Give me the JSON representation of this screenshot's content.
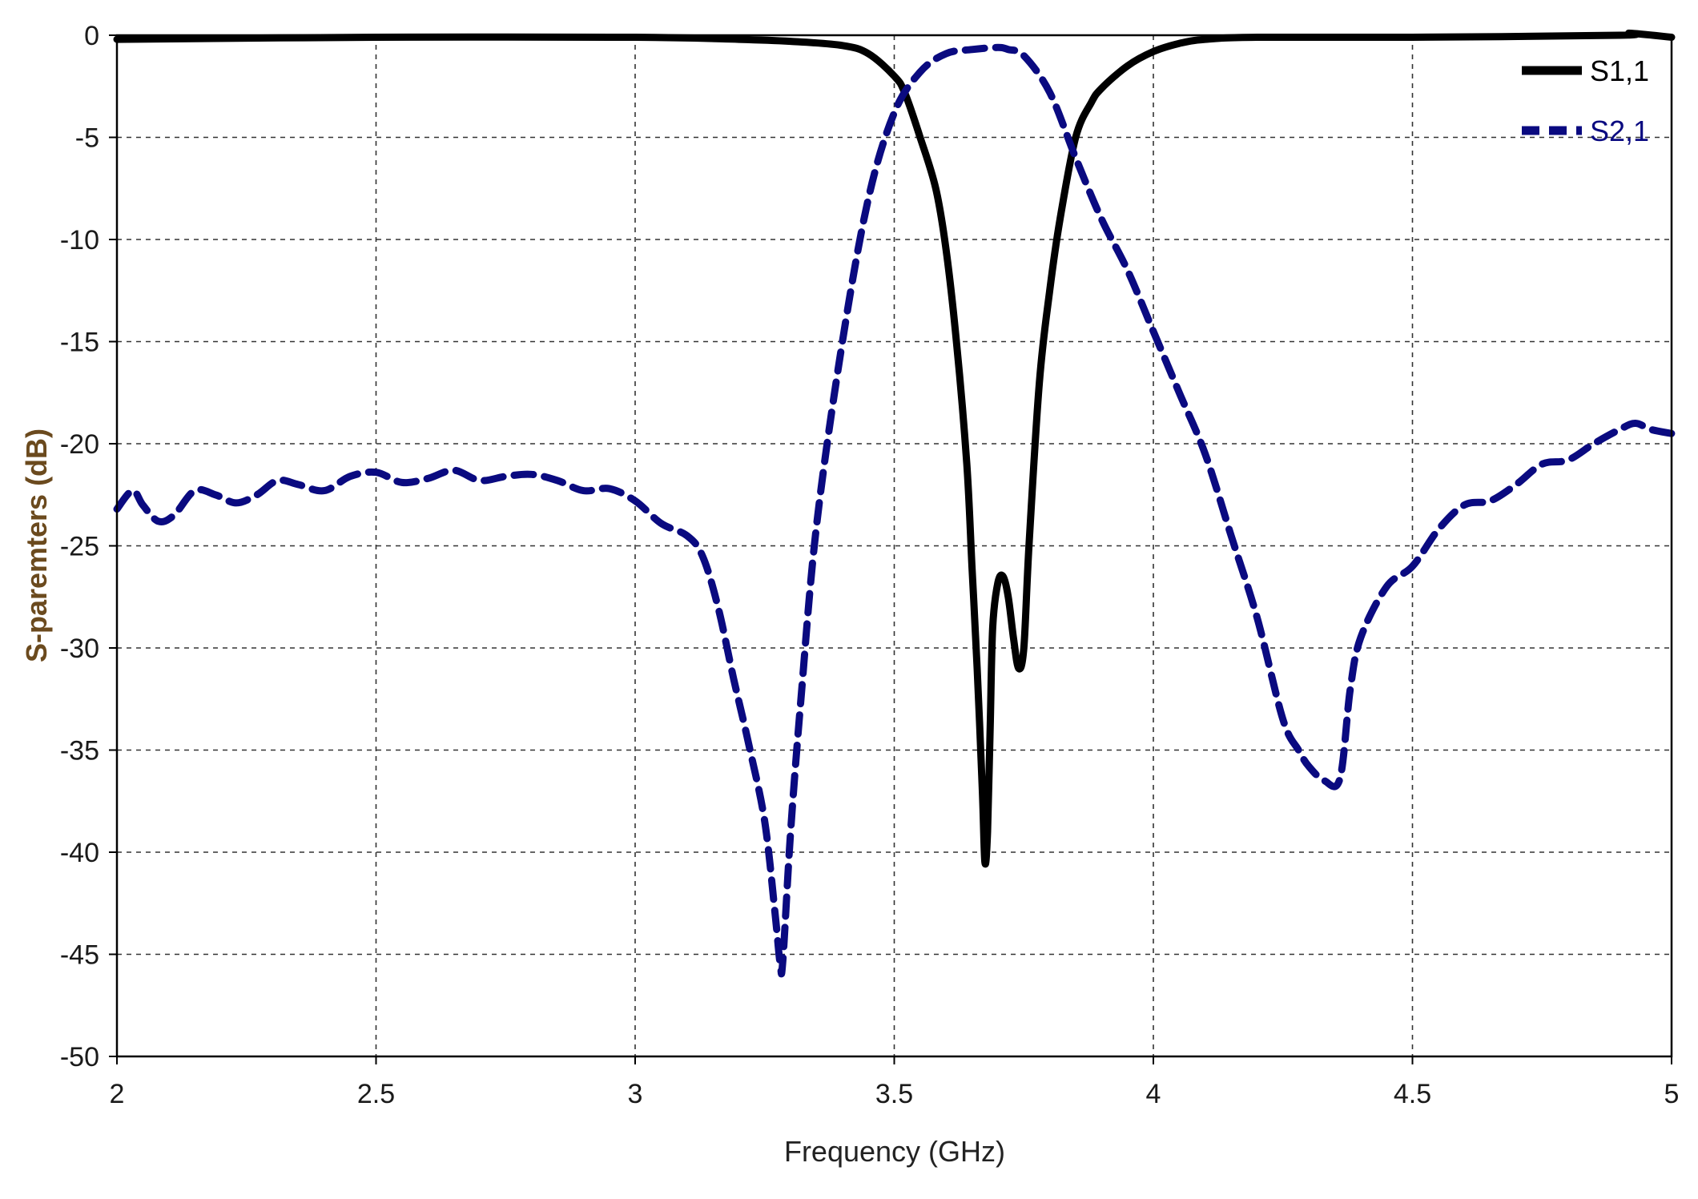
{
  "chart_data": {
    "type": "line",
    "title": "",
    "xlabel": "Frequency (GHz)",
    "ylabel": "S-paremters (dB)",
    "xlim": [
      2,
      5
    ],
    "ylim": [
      -50,
      0
    ],
    "x_ticks": [
      2,
      2.5,
      3,
      3.5,
      4,
      4.5,
      5
    ],
    "x_tick_labels": [
      "2",
      "2.5",
      "3",
      "3.5",
      "4",
      "4.5",
      "5"
    ],
    "y_ticks": [
      0,
      -5,
      -10,
      -15,
      -20,
      -25,
      -30,
      -35,
      -40,
      -45,
      -50
    ],
    "y_tick_labels": [
      "0",
      "-5",
      "-10",
      "-15",
      "-20",
      "-25",
      "-30",
      "-35",
      "-40",
      "-45",
      "-50"
    ],
    "grid": true,
    "legend_position": "top-right",
    "colors": {
      "s11": "#000000",
      "s21": "#0a0a80",
      "ylabel": "#6b4a1e",
      "xlabel": "#222222",
      "legend_s11": "#000000",
      "legend_s21": "#0a0a80"
    },
    "series": [
      {
        "name": "S1,1",
        "style": "solid",
        "x": [
          2.0,
          2.5,
          3.0,
          3.2,
          3.3,
          3.4,
          3.45,
          3.5,
          3.52,
          3.55,
          3.58,
          3.6,
          3.62,
          3.64,
          3.65,
          3.66,
          3.67,
          3.675,
          3.68,
          3.685,
          3.69,
          3.7,
          3.71,
          3.72,
          3.73,
          3.74,
          3.75,
          3.76,
          3.78,
          3.8,
          3.82,
          3.85,
          3.88,
          3.9,
          3.95,
          4.0,
          4.05,
          4.1,
          4.2,
          4.5,
          4.9,
          4.92,
          5.0
        ],
        "y": [
          -0.2,
          -0.1,
          -0.1,
          -0.2,
          -0.3,
          -0.5,
          -0.9,
          -2.0,
          -2.8,
          -5.0,
          -7.5,
          -10.5,
          -15.0,
          -21.0,
          -26.0,
          -31.0,
          -37.0,
          -40.5,
          -39.0,
          -34.0,
          -29.0,
          -26.8,
          -26.5,
          -27.5,
          -29.5,
          -31.0,
          -30.0,
          -25.0,
          -17.0,
          -12.5,
          -9.0,
          -5.0,
          -3.3,
          -2.6,
          -1.5,
          -0.8,
          -0.4,
          -0.2,
          -0.1,
          -0.1,
          0.0,
          0.1,
          -0.1
        ]
      },
      {
        "name": "S2,1",
        "style": "dashed",
        "x": [
          2.0,
          2.03,
          2.05,
          2.08,
          2.11,
          2.15,
          2.19,
          2.23,
          2.27,
          2.31,
          2.35,
          2.4,
          2.45,
          2.5,
          2.55,
          2.6,
          2.65,
          2.7,
          2.75,
          2.8,
          2.85,
          2.9,
          2.95,
          3.0,
          3.05,
          3.1,
          3.13,
          3.16,
          3.19,
          3.22,
          3.25,
          3.27,
          3.28,
          3.285,
          3.3,
          3.32,
          3.35,
          3.4,
          3.45,
          3.5,
          3.55,
          3.6,
          3.65,
          3.7,
          3.72,
          3.75,
          3.8,
          3.85,
          3.9,
          3.95,
          4.0,
          4.05,
          4.1,
          4.15,
          4.2,
          4.25,
          4.28,
          4.3,
          4.33,
          4.36,
          4.38,
          4.4,
          4.45,
          4.5,
          4.55,
          4.6,
          4.65,
          4.7,
          4.75,
          4.8,
          4.85,
          4.9,
          4.93,
          4.96,
          5.0
        ],
        "y": [
          -23.2,
          -22.3,
          -23.0,
          -23.8,
          -23.5,
          -22.3,
          -22.5,
          -22.9,
          -22.5,
          -21.8,
          -22.0,
          -22.3,
          -21.6,
          -21.4,
          -21.9,
          -21.7,
          -21.3,
          -21.8,
          -21.6,
          -21.5,
          -21.8,
          -22.3,
          -22.2,
          -22.8,
          -23.9,
          -24.5,
          -25.5,
          -28.0,
          -31.5,
          -34.8,
          -38.5,
          -43.0,
          -45.5,
          -45.3,
          -39.0,
          -32.5,
          -24.0,
          -15.0,
          -8.0,
          -3.8,
          -1.8,
          -0.9,
          -0.7,
          -0.6,
          -0.7,
          -1.0,
          -2.8,
          -6.0,
          -9.0,
          -11.5,
          -14.5,
          -17.5,
          -20.5,
          -24.5,
          -28.5,
          -33.5,
          -35.0,
          -35.8,
          -36.5,
          -36.4,
          -32.0,
          -29.5,
          -27.0,
          -26.0,
          -24.2,
          -23.0,
          -22.8,
          -22.0,
          -21.0,
          -20.8,
          -20.0,
          -19.3,
          -19.0,
          -19.3,
          -19.5
        ]
      }
    ]
  }
}
